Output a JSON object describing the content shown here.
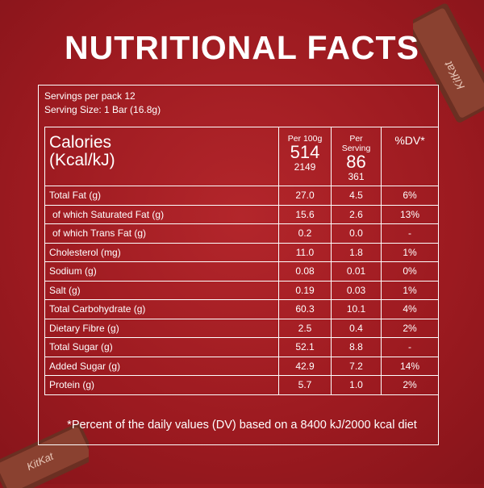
{
  "header": {
    "title": "NUTRITIONAL FACTS",
    "servings_per_pack": "Servings per pack 12",
    "serving_size": "Serving Size: 1 Bar (16.8g)"
  },
  "table": {
    "calories_label": [
      "Calories",
      "(Kcal/kJ)"
    ],
    "columns": [
      {
        "label": "Per 100g",
        "kcal": "514",
        "kj": "2149"
      },
      {
        "label": "Per Serving",
        "kcal": "86",
        "kj": "361"
      }
    ],
    "dv_label": "%DV*",
    "rows": [
      [
        "Total Fat (g)",
        "27.0",
        "4.5",
        "6%"
      ],
      [
        "of which Saturated Fat (g)",
        "15.6",
        "2.6",
        "13%"
      ],
      [
        "of which Trans Fat (g)",
        "0.2",
        "0.0",
        "-"
      ],
      [
        "Cholesterol (mg)",
        "11.0",
        "1.8",
        "1%"
      ],
      [
        "Sodium (g)",
        "0.08",
        "0.01",
        "0%"
      ],
      [
        "Salt (g)",
        "0.19",
        "0.03",
        "1%"
      ],
      [
        "Total Carbohydrate (g)",
        "60.3",
        "10.1",
        "4%"
      ],
      [
        "Dietary Fibre (g)",
        "2.5",
        "0.4",
        "2%"
      ],
      [
        "Total Sugar (g)",
        "52.1",
        "8.8",
        "-"
      ],
      [
        "Added Sugar (g)",
        "42.9",
        "7.2",
        "14%"
      ],
      [
        "Protein (g)",
        "5.7",
        "1.0",
        "2%"
      ]
    ]
  },
  "footnote": "*Percent of the daily values (DV) based on a 8400 kJ/2000 kcal diet",
  "logo": "KitKat"
}
